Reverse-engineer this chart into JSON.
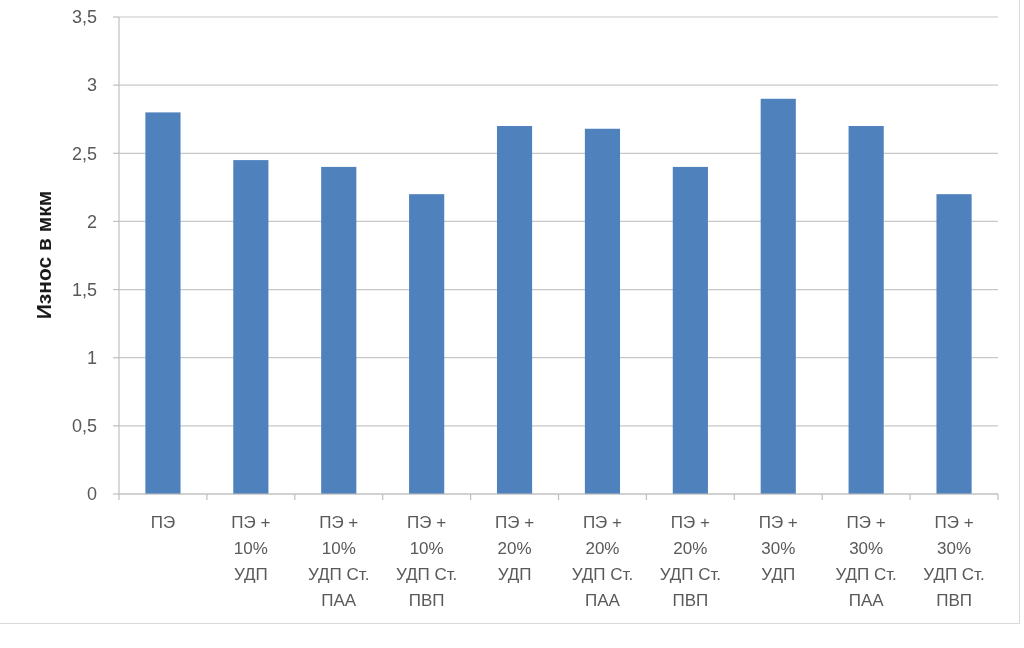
{
  "chart_data": {
    "type": "bar",
    "ylabel": "Износ в мкм",
    "categories": [
      "ПЭ",
      "ПЭ + 10% УДП",
      "ПЭ + 10% УДП Ст. ПАА",
      "ПЭ + 10% УДП Ст. ПВП",
      "ПЭ + 20% УДП",
      "ПЭ + 20% УДП Ст. ПАА",
      "ПЭ + 20% УДП Ст. ПВП",
      "ПЭ + 30% УДП",
      "ПЭ + 30% УДП Ст. ПАА",
      "ПЭ + 30% УДП Ст. ПВП"
    ],
    "values": [
      2.8,
      2.45,
      2.4,
      2.2,
      2.7,
      2.68,
      2.4,
      2.9,
      2.7,
      2.2
    ],
    "color": "#4f81bd",
    "ylim": [
      0,
      3.5
    ],
    "yticks": [
      0,
      {
        "value": 0.5,
        "label": "0,5"
      },
      1,
      {
        "value": 1.5,
        "label": "1,5"
      },
      2,
      {
        "value": 2.5,
        "label": "2,5"
      },
      3,
      {
        "value": 3.5,
        "label": "3,5"
      }
    ],
    "grid": "y"
  }
}
